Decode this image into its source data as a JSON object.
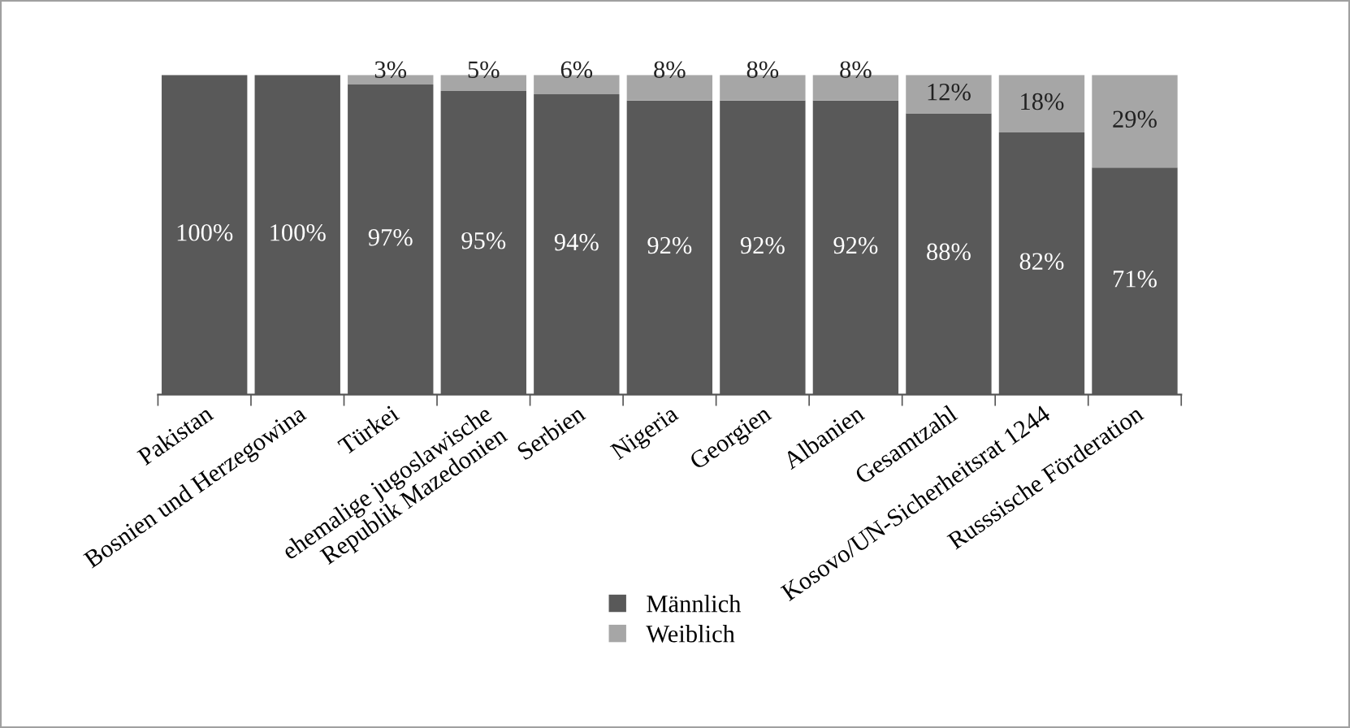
{
  "chart_data": {
    "type": "bar",
    "stacked": true,
    "legend": "bottom",
    "categories": [
      "Pakistan",
      "Bosnien und Herzegowina",
      "Türkei",
      "ehemalige jugoslawische\nRepublik Mazedonien",
      "Serbien",
      "Nigeria",
      "Georgien",
      "Albanien",
      "Gesamtzahl",
      "Kosovo/UN-Sicherheitsrat 1244",
      "Russsische Förderation"
    ],
    "series": [
      {
        "name": "Männlich",
        "color": "#595959",
        "values": [
          100,
          100,
          97,
          95,
          94,
          92,
          92,
          92,
          88,
          82,
          71
        ],
        "value_labels": [
          "100%",
          "100%",
          "97%",
          "95%",
          "94%",
          "92%",
          "92%",
          "92%",
          "88%",
          "82%",
          "71%"
        ]
      },
      {
        "name": "Weiblich",
        "color": "#a6a6a6",
        "values": [
          0,
          0,
          3,
          5,
          6,
          8,
          8,
          8,
          12,
          18,
          29
        ],
        "value_labels": [
          null,
          null,
          "3%",
          "5%",
          "6%",
          "8%",
          "8%",
          "8%",
          "12%",
          "18%",
          "29%"
        ]
      }
    ]
  }
}
